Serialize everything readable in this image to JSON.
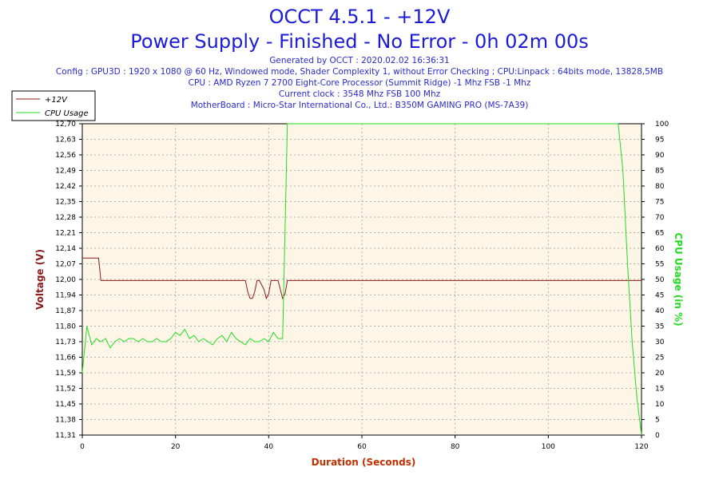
{
  "header": {
    "title": "OCCT 4.5.1 - +12V",
    "subtitle": "Power Supply - Finished - No Error - 0h 02m 00s",
    "generated": "Generated by OCCT : 2020.02.02 16:36:31",
    "config": "Config : GPU3D : 1920 x 1080 @ 60 Hz, Windowed mode, Shader Complexity 1, without Error Checking ; CPU:Linpack : 64bits mode, 13828,5MB",
    "cpu": "CPU : AMD Ryzen 7 2700 Eight-Core Processor (Summit Ridge) -1 Mhz FSB -1 Mhz",
    "clock": "Current clock : 3548 Mhz FSB 100 Mhz",
    "motherboard": "MotherBoard : Micro-Star International Co., Ltd.: B350M GAMING PRO (MS-7A39)"
  },
  "colors": {
    "voltage": "#8b1a1a",
    "cpu": "#22dd22",
    "plot_bg": "#fdf6e6",
    "title": "#1c1cd8",
    "xlabel": "#c03000"
  },
  "chart_data": {
    "type": "line",
    "xlabel": "Duration (Seconds)",
    "ylabel": "Voltage (V)",
    "y2label": "CPU Usage (in %)",
    "xlim": [
      0,
      120
    ],
    "ylim": [
      11.31,
      12.7
    ],
    "y2lim": [
      0,
      100
    ],
    "x_ticks": [
      "0",
      "20",
      "40",
      "60",
      "80",
      "100",
      "120"
    ],
    "y_ticks": [
      "11,31",
      "11,38",
      "11,45",
      "11,52",
      "11,59",
      "11,66",
      "11,73",
      "11,80",
      "11,87",
      "11,94",
      "12,00",
      "12,07",
      "12,14",
      "12,21",
      "12,28",
      "12,35",
      "12,42",
      "12,49",
      "12,56",
      "12,63",
      "12,70"
    ],
    "y2_ticks": [
      "0",
      "5",
      "10",
      "15",
      "20",
      "25",
      "30",
      "35",
      "40",
      "45",
      "50",
      "55",
      "60",
      "65",
      "70",
      "75",
      "80",
      "85",
      "90",
      "95",
      "100"
    ],
    "grid": "on",
    "legend_position": "top-left",
    "series": [
      {
        "name": "+12V",
        "axis": "left",
        "x": [
          0,
          3.5,
          4,
          35,
          35.5,
          36,
          36.5,
          37,
          37.5,
          38,
          39,
          39.5,
          40,
          40.5,
          41,
          41.5,
          42,
          42.5,
          43,
          43.5,
          44,
          44.5,
          45,
          120
        ],
        "y": [
          12.1,
          12.1,
          12.0,
          12.0,
          11.95,
          11.92,
          11.92,
          11.95,
          12.0,
          12.0,
          11.96,
          11.92,
          11.94,
          12.0,
          12.0,
          12.0,
          12.0,
          11.96,
          11.92,
          11.94,
          12.0,
          12.0,
          12.0,
          12.0
        ]
      },
      {
        "name": "CPU Usage",
        "axis": "right",
        "x": [
          0,
          1,
          2,
          3,
          4,
          5,
          6,
          7,
          8,
          9,
          10,
          11,
          12,
          13,
          14,
          15,
          16,
          17,
          18,
          19,
          20,
          21,
          22,
          23,
          24,
          25,
          26,
          27,
          28,
          29,
          30,
          31,
          32,
          33,
          34,
          35,
          36,
          37,
          38,
          39,
          40,
          41,
          42,
          43,
          44,
          45,
          114,
          115,
          116,
          117,
          118,
          119,
          120
        ],
        "y": [
          20,
          35,
          29,
          31,
          30,
          31,
          28,
          30,
          31,
          30,
          31,
          31,
          30,
          31,
          30,
          30,
          31,
          30,
          30,
          31,
          33,
          32,
          34,
          31,
          32,
          30,
          31,
          30,
          29,
          31,
          32,
          30,
          33,
          31,
          30,
          29,
          31,
          30,
          30,
          31,
          30,
          33,
          31,
          31,
          100,
          100,
          100,
          100,
          85,
          55,
          30,
          12,
          0
        ]
      }
    ]
  }
}
